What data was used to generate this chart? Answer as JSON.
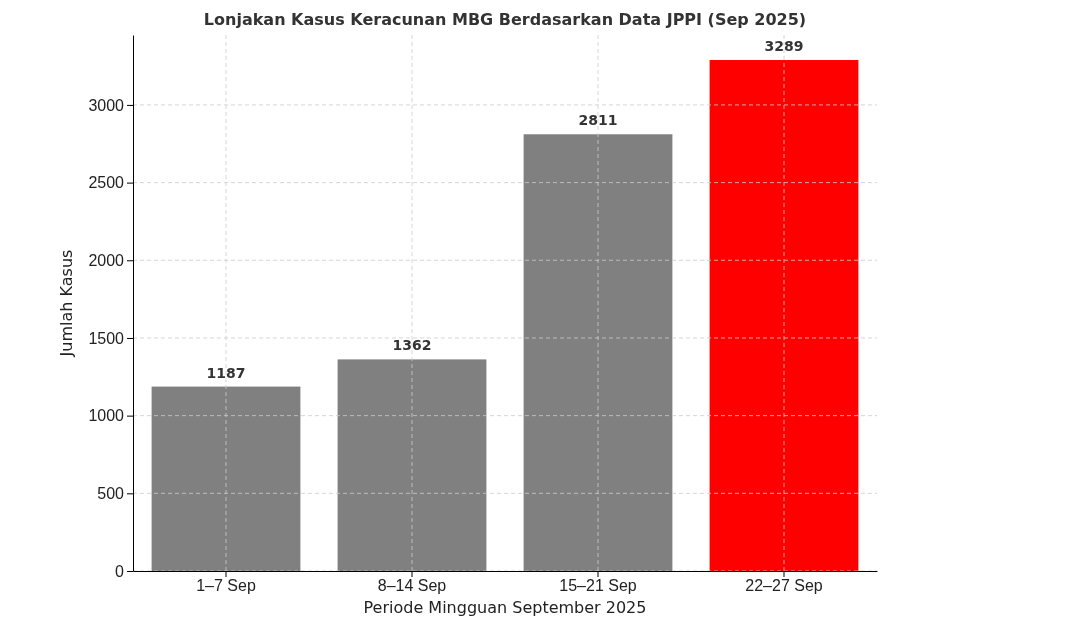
{
  "chart_data": {
    "type": "bar",
    "title": "Lonjakan Kasus Keracunan MBG Berdasarkan Data JPPI (Sep 2025)",
    "xlabel": "Periode Mingguan September 2025",
    "ylabel": "Jumlah Kasus",
    "categories": [
      "1–7 Sep",
      "8–14 Sep",
      "15–21 Sep",
      "22–27 Sep"
    ],
    "values": [
      1187,
      1362,
      2811,
      3289
    ],
    "colors": [
      "#808080",
      "#808080",
      "#808080",
      "#ff0000"
    ],
    "ylim": [
      0,
      3450
    ],
    "yticks": [
      0,
      500,
      1000,
      1500,
      2000,
      2500,
      3000
    ],
    "grid": true,
    "data_labels": true
  }
}
